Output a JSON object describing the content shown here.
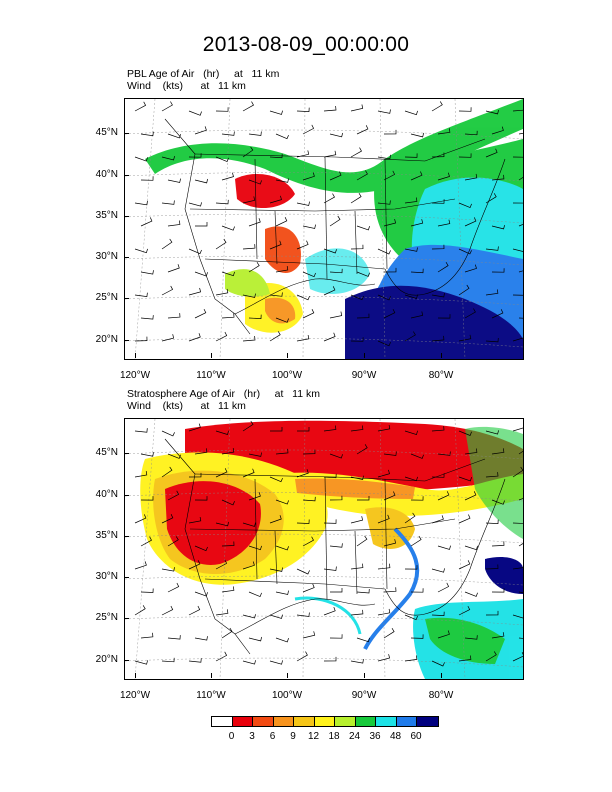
{
  "title": "2013-08-09_00:00:00",
  "panels": [
    {
      "field_line": "PBL Age of Air   (hr)     at   11 km",
      "wind_line": "Wind    (kts)      at   11 km"
    },
    {
      "field_line": "Stratosphere Age of Air   (hr)     at   11 km",
      "wind_line": "Wind    (kts)      at   11 km"
    }
  ],
  "lat_labels": [
    "45°N",
    "40°N",
    "35°N",
    "30°N",
    "25°N",
    "20°N"
  ],
  "lon_labels": [
    "120°W",
    "110°W",
    "100°W",
    "90°W",
    "80°W"
  ],
  "colorbar": {
    "labels": [
      "0",
      "3",
      "6",
      "9",
      "12",
      "18",
      "24",
      "36",
      "48",
      "60"
    ],
    "colors": [
      "#ffffff",
      "#e8000b",
      "#f24a12",
      "#f7931d",
      "#f5c518",
      "#fff21c",
      "#b7f02e",
      "#17c93b",
      "#1de2e6",
      "#1f7bea",
      "#00007f"
    ]
  },
  "colors": {
    "background": "#ffffff",
    "state_lines": "#000000",
    "wind_barbs": "#000000"
  }
}
